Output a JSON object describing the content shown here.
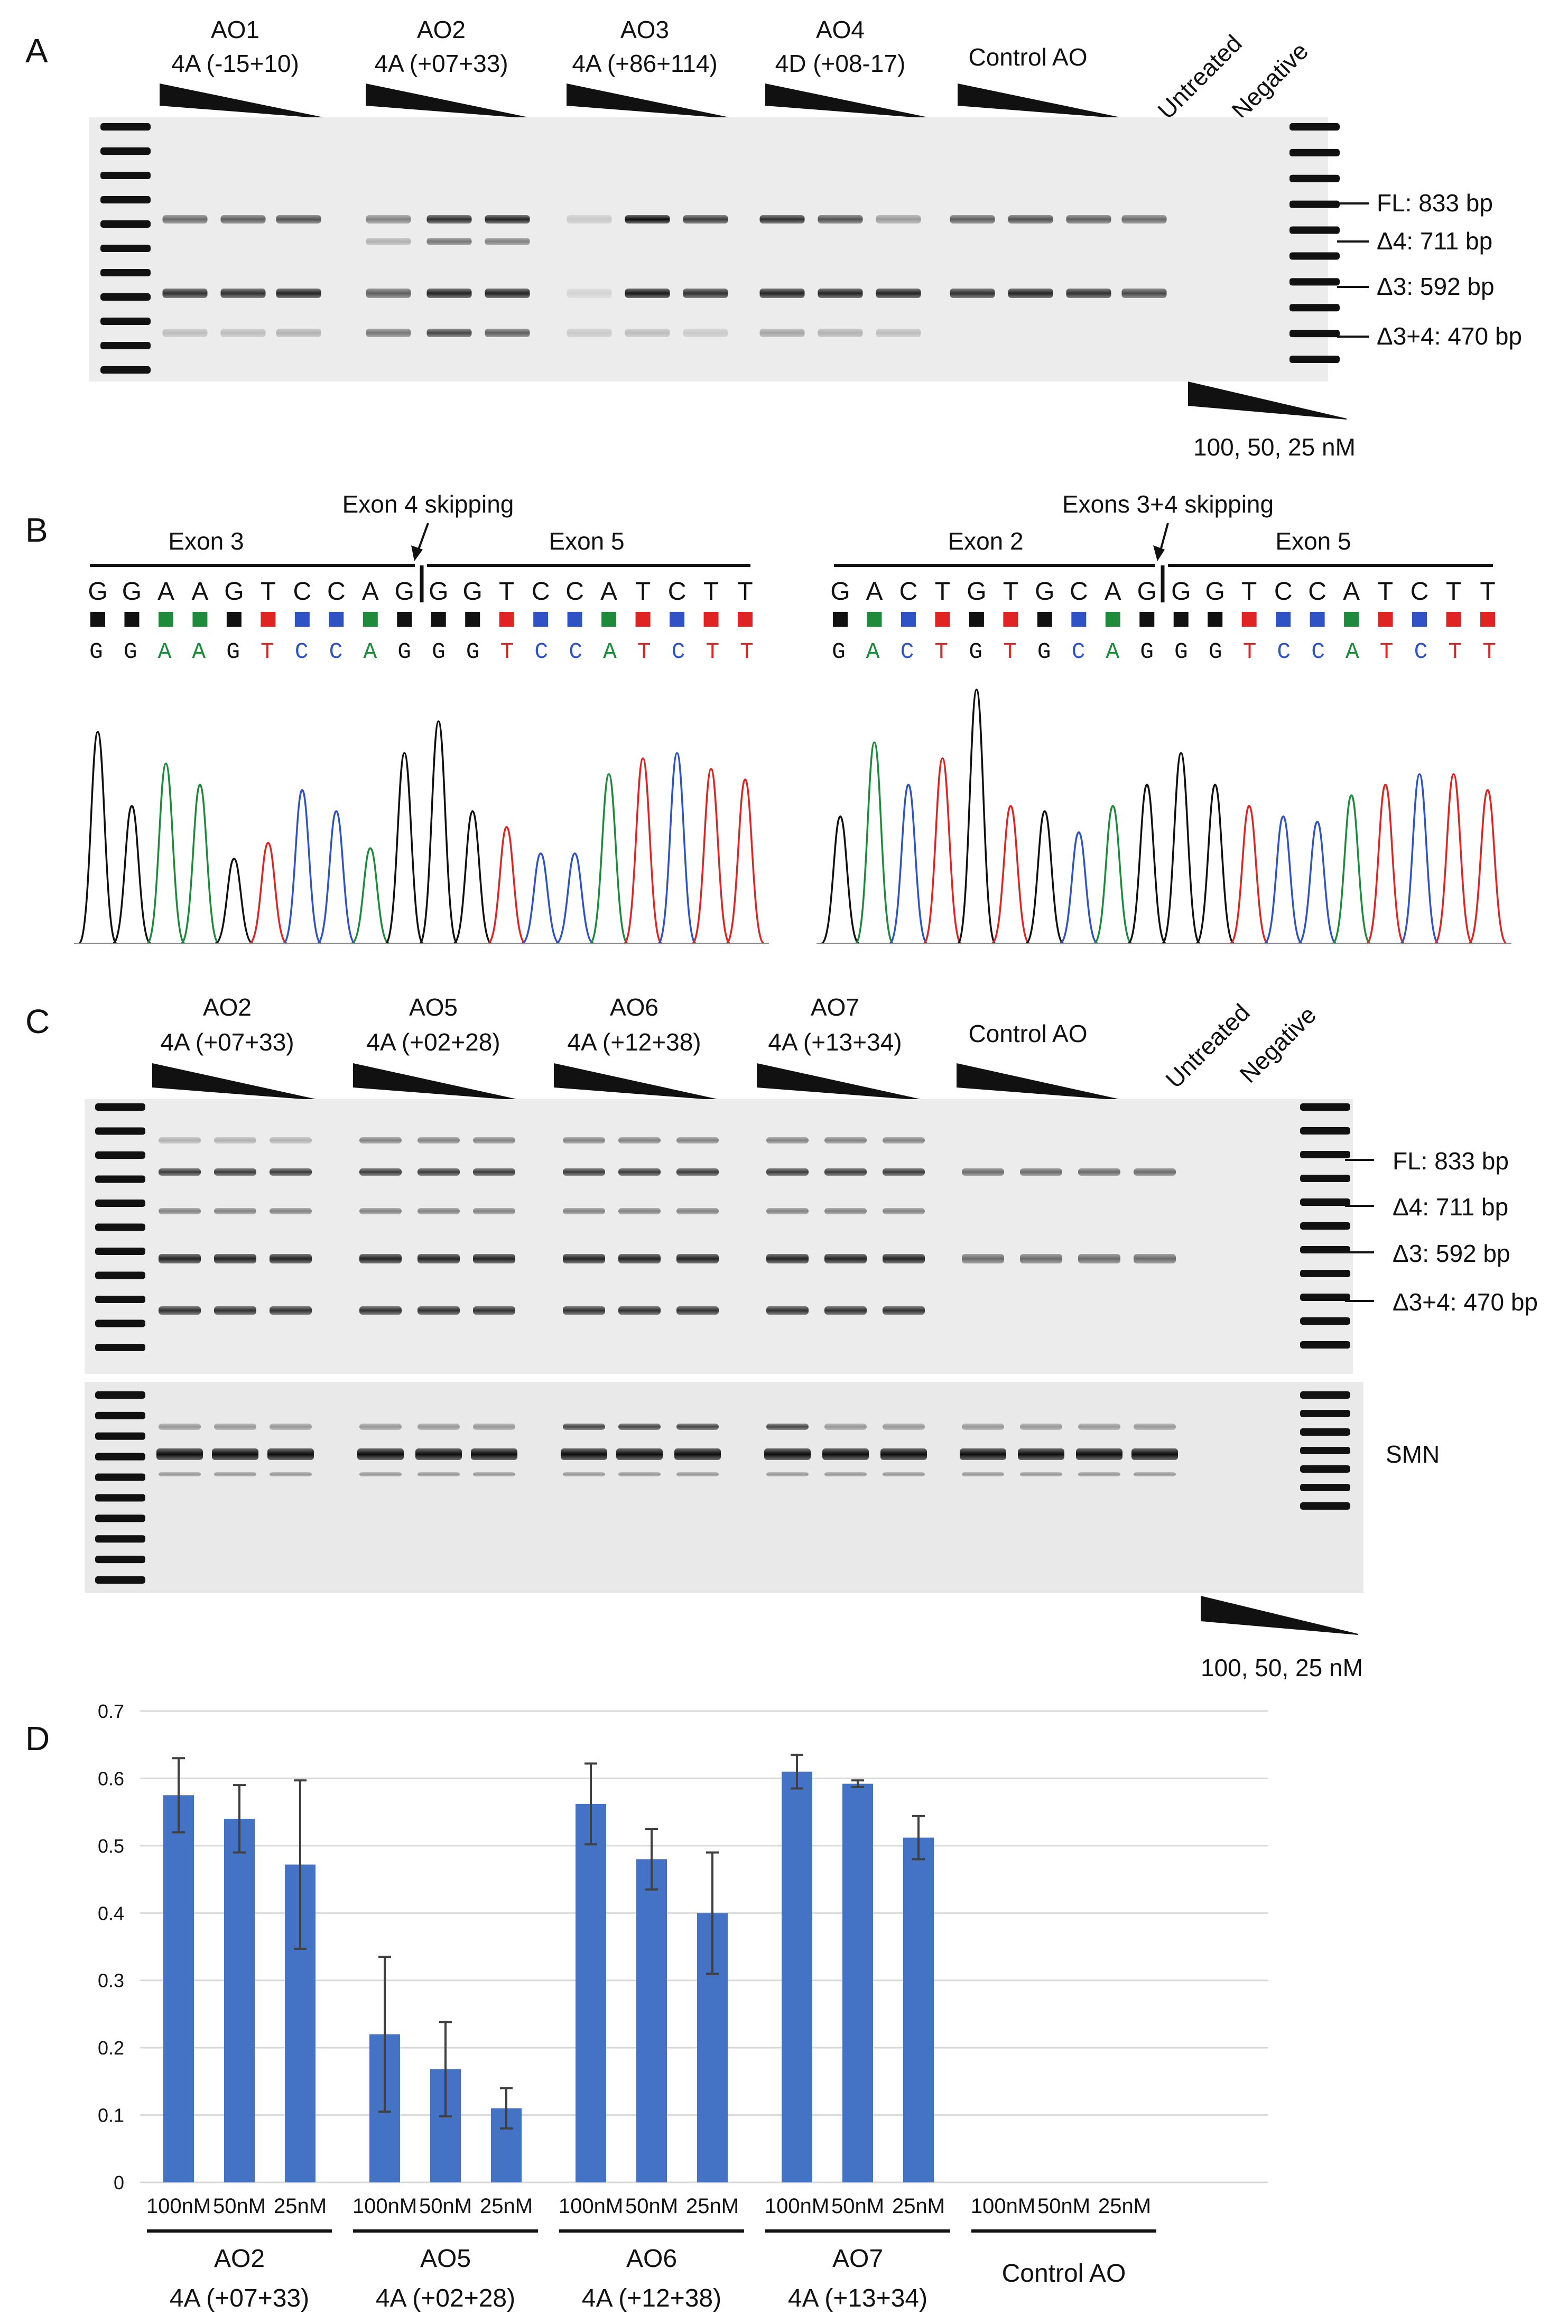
{
  "panel_letters": [
    "A",
    "B",
    "C",
    "D"
  ],
  "panel_a": {
    "groups": [
      {
        "name": "AO1",
        "target": "4A (-15+10)"
      },
      {
        "name": "AO2",
        "target": "4A (+07+33)"
      },
      {
        "name": "AO3",
        "target": "4A (+86+114)"
      },
      {
        "name": "AO4",
        "target": "4D (+08-17)"
      },
      {
        "name": "Control AO",
        "target": ""
      }
    ],
    "untreated": "Untreated",
    "negative": "Negative",
    "bands": [
      "FL: 833 bp",
      "Δ4: 711 bp",
      "Δ3: 592 bp",
      "Δ3+4: 470 bp"
    ],
    "conc_label": "100, 50, 25 nM"
  },
  "panel_b": {
    "left": {
      "skip_label": "Exon 4 skipping",
      "exon_left": "Exon 3",
      "exon_right": "Exon 5",
      "sequence": [
        "G",
        "G",
        "A",
        "A",
        "G",
        "T",
        "C",
        "C",
        "A",
        "G",
        "G",
        "G",
        "T",
        "C",
        "C",
        "A",
        "T",
        "C",
        "T",
        "T"
      ],
      "trace_sequence": "GGAAGTCCAGGGTCCATCTT"
    },
    "right": {
      "skip_label": "Exons 3+4 skipping",
      "exon_left": "Exon 2",
      "exon_right": "Exon 5",
      "sequence": [
        "G",
        "A",
        "C",
        "T",
        "G",
        "T",
        "G",
        "C",
        "A",
        "G",
        "G",
        "G",
        "T",
        "C",
        "C",
        "A",
        "T",
        "C",
        "T",
        "T"
      ],
      "trace_sequence": "GACTGTGCAGGGTCCATCTT"
    },
    "base_colors": {
      "G": "#111111",
      "A": "#1d8a3c",
      "C": "#2f52c4",
      "T": "#e02424"
    }
  },
  "panel_c": {
    "groups": [
      {
        "name": "AO2",
        "target": "4A (+07+33)"
      },
      {
        "name": "AO5",
        "target": "4A (+02+28)"
      },
      {
        "name": "AO6",
        "target": "4A (+12+38)"
      },
      {
        "name": "AO7",
        "target": "4A (+13+34)"
      },
      {
        "name": "Control AO",
        "target": ""
      }
    ],
    "untreated": "Untreated",
    "negative": "Negative",
    "bands": [
      "FL: 833 bp",
      "Δ4: 711 bp",
      "Δ3: 592 bp",
      "Δ3+4: 470 bp"
    ],
    "smn_label": "SMN",
    "conc_label": "100, 50, 25 nM"
  },
  "chart_data": {
    "type": "bar",
    "title": "",
    "xlabel": "",
    "ylabel": "",
    "ylim": [
      0,
      0.7
    ],
    "yticks": [
      "0",
      "0.1",
      "0.2",
      "0.3",
      "0.4",
      "0.5",
      "0.6",
      "0.7"
    ],
    "grid": true,
    "bar_color": "#4472c4",
    "groups": [
      {
        "name": "AO2",
        "target": "4A (+07+33)",
        "categories": [
          "100nM",
          "50nM",
          "25nM"
        ],
        "values": [
          0.575,
          0.54,
          0.472
        ],
        "errors": [
          0.055,
          0.05,
          0.125
        ]
      },
      {
        "name": "AO5",
        "target": "4A (+02+28)",
        "categories": [
          "100nM",
          "50nM",
          "25nM"
        ],
        "values": [
          0.22,
          0.168,
          0.11
        ],
        "errors": [
          0.115,
          0.07,
          0.03
        ]
      },
      {
        "name": "AO6",
        "target": "4A (+12+38)",
        "categories": [
          "100nM",
          "50nM",
          "25nM"
        ],
        "values": [
          0.562,
          0.48,
          0.4
        ],
        "errors": [
          0.06,
          0.045,
          0.09
        ]
      },
      {
        "name": "AO7",
        "target": "4A (+13+34)",
        "categories": [
          "100nM",
          "50nM",
          "25nM"
        ],
        "values": [
          0.61,
          0.592,
          0.512
        ],
        "errors": [
          0.025,
          0.005,
          0.032
        ]
      },
      {
        "name": "Control AO",
        "target": "",
        "categories": [
          "100nM",
          "50nM",
          "25nM"
        ],
        "values": [
          0,
          0,
          0
        ],
        "errors": [
          0,
          0,
          0
        ]
      }
    ]
  }
}
